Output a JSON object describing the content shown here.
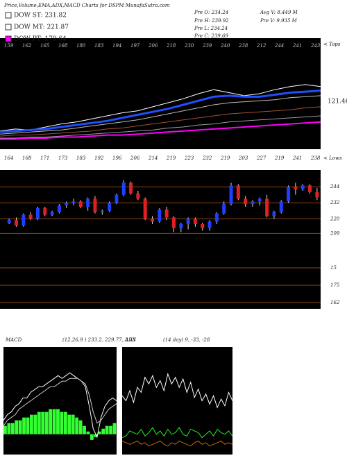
{
  "chart_data": [
    {
      "type": "line",
      "title": "Price,Volume,EMA,ADX,MACD Charts for DSPM MunafaSutra.com",
      "info": [
        "Pre O: 234.24",
        "Pre H: 239.92",
        "Pre L: 234.24",
        "Pre C: 239.69",
        "Avg V: 8.449 M",
        "Pre V: 9.935 M"
      ],
      "legend": [
        {
          "name": "DOW ST: 231.82",
          "color": "#ffffff"
        },
        {
          "name": "DOW MT: 221.87",
          "color": "#ffffff"
        },
        {
          "name": "DOW PT: 179.64",
          "color": "#ff00ff"
        }
      ],
      "tops_label": "< Tops",
      "lows_label": "< Lows",
      "tops": [
        159,
        162,
        165,
        168,
        180,
        183,
        194,
        197,
        206,
        218,
        230,
        239,
        240,
        238,
        212,
        244,
        241,
        243
      ],
      "lows": [
        164,
        168,
        171,
        173,
        183,
        192,
        196,
        206,
        214,
        219,
        223,
        232,
        219,
        203,
        227,
        219,
        241,
        238
      ],
      "last_label": "121.46",
      "ylim": [
        150,
        260
      ],
      "series": [
        {
          "color": "#ffffff",
          "width": 1,
          "values": [
            168,
            170,
            169,
            172,
            175,
            177,
            180,
            183,
            186,
            188,
            192,
            196,
            200,
            205,
            209,
            206,
            203,
            205,
            209,
            212,
            214,
            212
          ]
        },
        {
          "color": "#1f4fff",
          "width": 3,
          "values": [
            167,
            168,
            169,
            170,
            172,
            174,
            176,
            178,
            181,
            184,
            187,
            190,
            194,
            198,
            202,
            203,
            202,
            202,
            204,
            206,
            207,
            208
          ]
        },
        {
          "color": "#bbbbbb",
          "width": 1,
          "values": [
            165,
            166,
            167,
            168,
            169,
            171,
            173,
            175,
            177,
            179,
            182,
            185,
            188,
            191,
            194,
            196,
            197,
            198,
            199,
            201,
            202,
            203
          ]
        },
        {
          "color": "#a0522d",
          "width": 1,
          "values": [
            163,
            164,
            164,
            165,
            166,
            167,
            168,
            170,
            171,
            173,
            175,
            177,
            179,
            181,
            183,
            185,
            186,
            187,
            188,
            189,
            191,
            192
          ]
        },
        {
          "color": "#999999",
          "width": 1,
          "values": [
            161,
            161,
            162,
            162,
            163,
            164,
            165,
            166,
            167,
            168,
            169,
            171,
            172,
            174,
            175,
            177,
            178,
            179,
            180,
            181,
            182,
            183
          ]
        },
        {
          "color": "#ff00ff",
          "width": 2,
          "values": [
            160,
            160,
            161,
            161,
            162,
            162,
            163,
            164,
            164,
            165,
            166,
            167,
            168,
            169,
            170,
            171,
            172,
            173,
            174,
            175,
            176,
            177
          ]
        }
      ]
    },
    {
      "type": "candlestick",
      "up_color": "#1f3fff",
      "down_color": "#e02020",
      "ylim": [
        155,
        254
      ],
      "yticks": [
        244,
        232,
        220,
        209
      ],
      "extra_labels": [
        "15",
        "175",
        "162"
      ],
      "open": [
        217,
        219,
        215,
        223,
        220,
        228,
        223,
        225,
        230,
        232,
        233,
        229,
        235,
        225,
        226,
        232,
        238,
        247,
        239,
        235,
        220,
        218,
        227,
        221,
        213,
        216,
        220,
        216,
        213,
        218,
        224,
        231,
        245,
        235,
        231,
        233,
        235,
        222,
        225,
        233,
        244,
        242,
        245,
        240
      ],
      "high": [
        220,
        221,
        224,
        225,
        229,
        229,
        226,
        231,
        233,
        235,
        234,
        236,
        237,
        227,
        233,
        239,
        249,
        248,
        241,
        236,
        222,
        228,
        229,
        222,
        217,
        221,
        221,
        217,
        219,
        225,
        233,
        247,
        246,
        237,
        234,
        236,
        238,
        226,
        234,
        245,
        247,
        246,
        246,
        243
      ],
      "low": [
        216,
        214,
        214,
        219,
        219,
        222,
        222,
        224,
        228,
        230,
        228,
        226,
        224,
        223,
        225,
        231,
        237,
        238,
        234,
        219,
        216,
        217,
        219,
        210,
        210,
        212,
        214,
        211,
        211,
        216,
        223,
        230,
        234,
        229,
        229,
        230,
        221,
        220,
        224,
        232,
        238,
        241,
        239,
        234
      ],
      "close": [
        219,
        215,
        223,
        220,
        228,
        223,
        225,
        230,
        232,
        233,
        229,
        235,
        225,
        226,
        232,
        238,
        247,
        239,
        235,
        220,
        218,
        227,
        221,
        213,
        216,
        220,
        216,
        213,
        218,
        224,
        231,
        245,
        235,
        231,
        233,
        235,
        222,
        225,
        233,
        244,
        242,
        245,
        240,
        236
      ]
    },
    {
      "type": "macd",
      "title": "MACD",
      "subtitle": "(12,26,9 ) 233.2, 229.77, 3.43",
      "ylim": [
        -6,
        30
      ],
      "histogram": {
        "color": "#33ff33",
        "values": [
          3,
          4,
          4,
          5,
          5,
          6,
          6,
          7,
          7,
          8,
          8,
          8,
          9,
          9,
          9,
          8,
          8,
          7,
          7,
          6,
          5,
          3,
          1,
          -2,
          -1,
          1,
          2,
          3,
          3,
          4
        ]
      },
      "series": [
        {
          "color": "#ffffff",
          "values": [
            5,
            7,
            8,
            10,
            11,
            13,
            13,
            15,
            16,
            17,
            17,
            18,
            19,
            20,
            21,
            20,
            21,
            22,
            21,
            20,
            19,
            17,
            10,
            2,
            -1,
            6,
            10,
            12,
            13,
            12
          ]
        },
        {
          "color": "#cccccc",
          "values": [
            3,
            5,
            6,
            7,
            9,
            10,
            11,
            12,
            13,
            14,
            15,
            16,
            17,
            17,
            18,
            19,
            19,
            20,
            20,
            20,
            19,
            18,
            14,
            8,
            4,
            5,
            7,
            9,
            10,
            11
          ]
        }
      ]
    },
    {
      "type": "adx",
      "title": "ADX",
      "subtitle": "(14 day) 9, -33, -28",
      "ylim": [
        0,
        60
      ],
      "series": [
        {
          "color": "#ffffff",
          "values": [
            33,
            30,
            36,
            29,
            38,
            35,
            44,
            40,
            45,
            38,
            42,
            36,
            46,
            40,
            44,
            38,
            43,
            35,
            41,
            32,
            37,
            30,
            34,
            28,
            33,
            26,
            31,
            27,
            35,
            30
          ]
        },
        {
          "color": "#22ee22",
          "values": [
            8,
            9,
            12,
            11,
            10,
            13,
            9,
            11,
            14,
            10,
            12,
            9,
            13,
            10,
            11,
            14,
            10,
            9,
            13,
            12,
            11,
            8,
            10,
            12,
            9,
            13,
            11,
            10,
            12,
            9
          ]
        },
        {
          "color": "#cc6600",
          "values": [
            6,
            5,
            4,
            5,
            6,
            4,
            5,
            3,
            4,
            5,
            6,
            4,
            3,
            5,
            4,
            6,
            5,
            4,
            3,
            5,
            6,
            4,
            5,
            3,
            4,
            5,
            6,
            4,
            5,
            4
          ]
        }
      ]
    }
  ]
}
